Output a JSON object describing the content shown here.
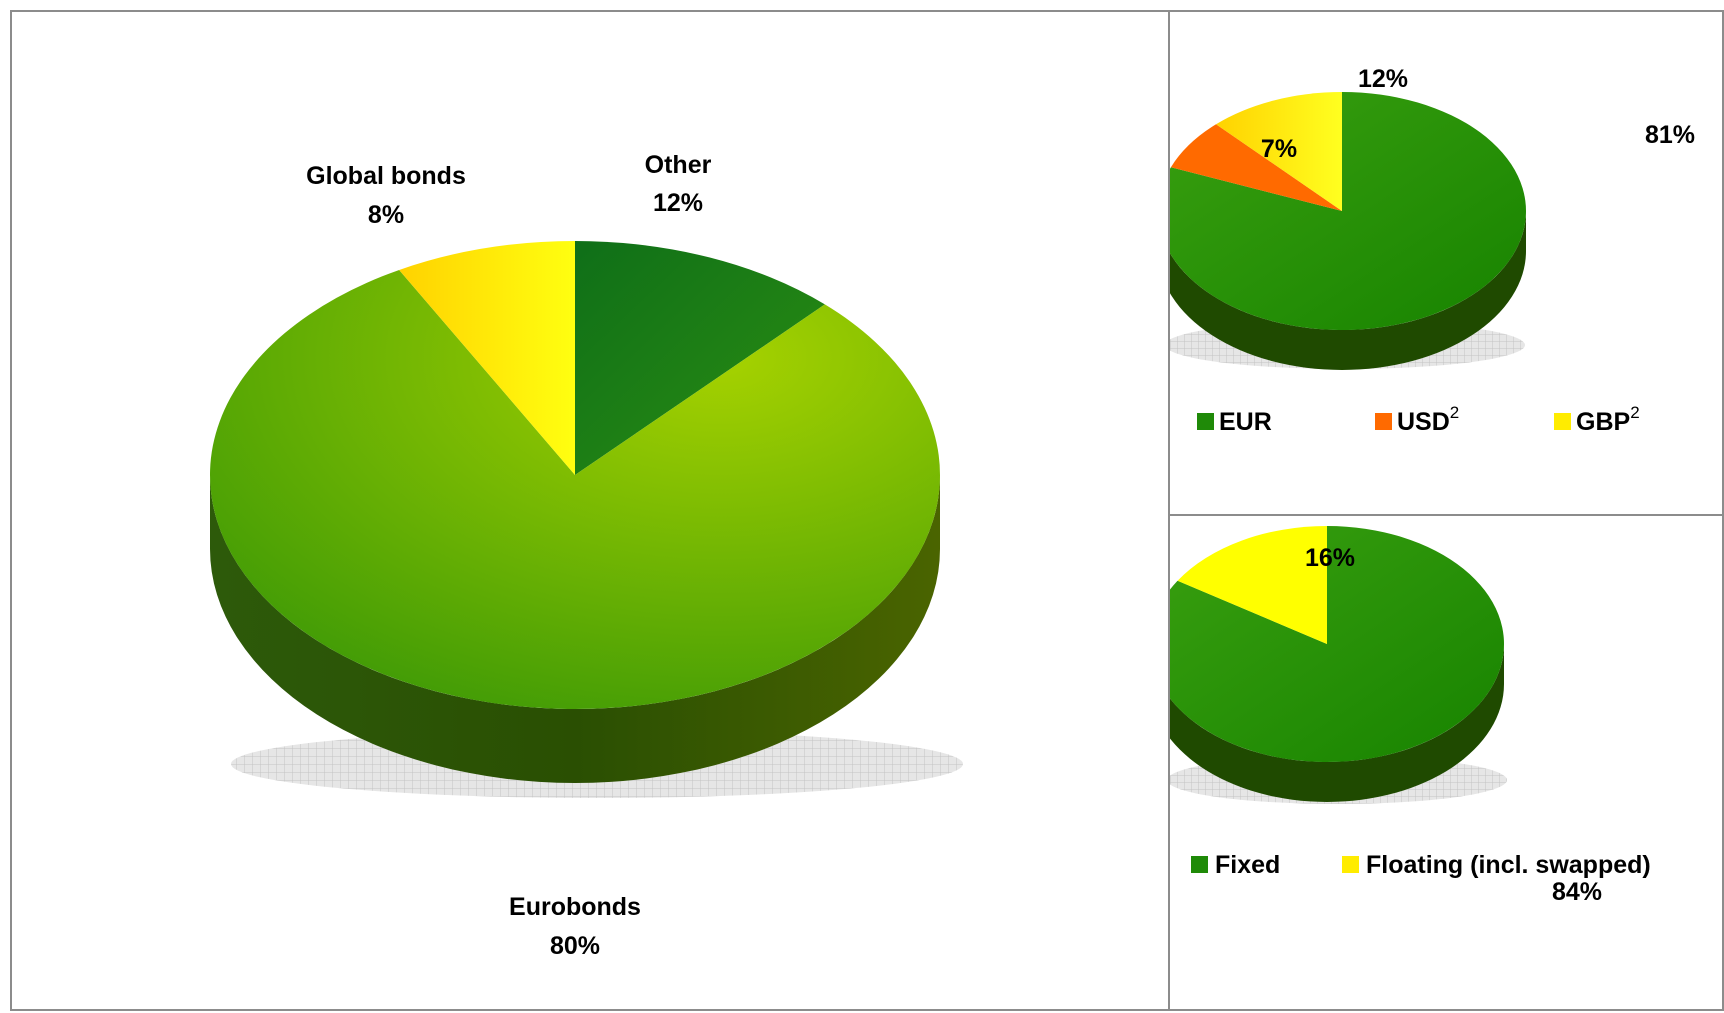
{
  "colors": {
    "dark_green": "#1f7f0a",
    "mid_green": "#2e8f10",
    "lime_green": "#7bbb08",
    "yellow": "#ffec00",
    "orange": "#ff6a00",
    "shadow_grid": "#c8c8c8"
  },
  "chart_data": [
    {
      "type": "pie",
      "style": "3d",
      "categories": [
        "Eurobonds",
        "Global bonds",
        "Other"
      ],
      "values": [
        80,
        8,
        12
      ],
      "labels": {
        "Eurobonds": "Eurobonds",
        "Eurobonds_pct": "80%",
        "Global bonds": "Global bonds",
        "Global bonds_pct": "8%",
        "Other": "Other",
        "Other_pct": "12%"
      },
      "legend": "none"
    },
    {
      "type": "pie",
      "style": "3d",
      "categories": [
        "EUR",
        "USD",
        "GBP"
      ],
      "values": [
        81,
        7,
        12
      ],
      "pct_labels": [
        "81%",
        "7%",
        "12%"
      ],
      "legend": "bottom",
      "legend_entries": [
        {
          "label": "EUR",
          "superscript": ""
        },
        {
          "label": "USD",
          "superscript": "2"
        },
        {
          "label": "GBP",
          "superscript": "2"
        }
      ]
    },
    {
      "type": "pie",
      "style": "3d",
      "categories": [
        "Fixed",
        "Floating (incl. swapped)"
      ],
      "values": [
        84,
        16
      ],
      "pct_labels": [
        "84%",
        "16%"
      ],
      "legend": "bottom",
      "legend_entries": [
        {
          "label": "Fixed"
        },
        {
          "label": "Floating (incl. swapped)"
        }
      ]
    }
  ]
}
